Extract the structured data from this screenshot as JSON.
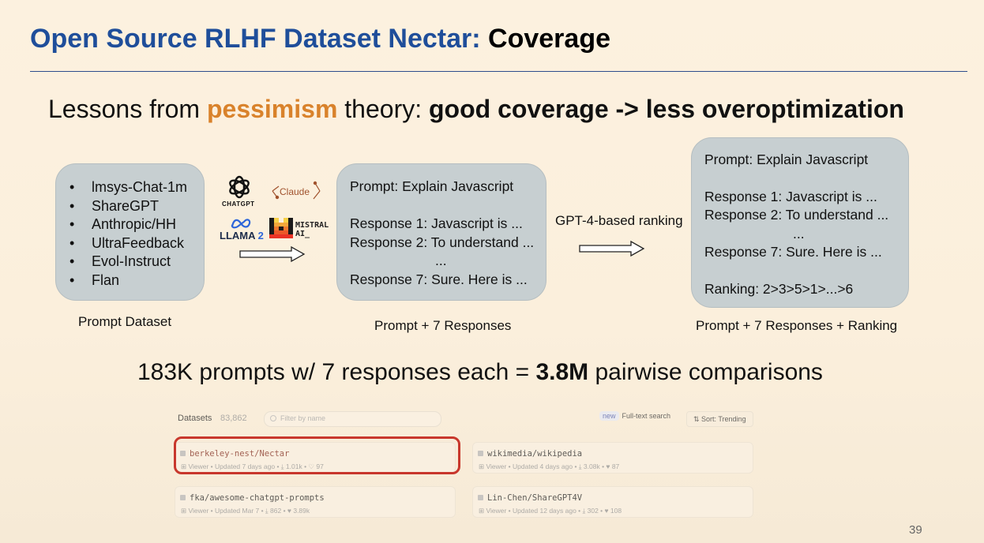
{
  "title": {
    "part1": "Open Source RLHF Dataset Nectar: ",
    "part2": "Coverage"
  },
  "subtitle": {
    "prefix": "Lessons from ",
    "highlight": "pessimism",
    "middle": " theory: ",
    "bold": "good coverage -> less overoptimization"
  },
  "prompt_dataset": {
    "items": [
      "lmsys-Chat-1m",
      "ShareGPT",
      "Anthropic/HH",
      "UltraFeedback",
      "Evol-Instruct",
      "Flan"
    ],
    "bullet": "•",
    "caption": "Prompt Dataset"
  },
  "models": {
    "chatgpt": "CHATGPT",
    "claude": "Claude",
    "llama": "LLAMA",
    "llama_version": "2",
    "mistral_line1": "MISTRAL",
    "mistral_line2": "AI_"
  },
  "responses_box": {
    "prompt": "Prompt: Explain Javascript",
    "response1": "Response 1: Javascript is ...",
    "response2": "Response 2: To understand ...",
    "dots": "...",
    "response7": "Response 7: Sure. Here is ...",
    "caption": "Prompt + 7 Responses"
  },
  "ranking_label": "GPT-4-based ranking",
  "ranking_box": {
    "prompt": "Prompt: Explain Javascript",
    "response1": "Response 1: Javascript is ...",
    "response2": "Response 2: To understand ...",
    "dots": "...",
    "response7": "Response 7: Sure. Here is ...",
    "ranking": "Ranking: 2>3>5>1>...>6",
    "caption": "Prompt + 7 Responses + Ranking"
  },
  "stats": {
    "prefix": "183K prompts w/ 7 responses each = ",
    "bold": "3.8M",
    "suffix": " pairwise comparisons"
  },
  "datasets_panel": {
    "label": "Datasets",
    "count": "83,862",
    "filter_placeholder": "Filter by name",
    "new_badge": "new",
    "fulltext_label": "Full-text search",
    "sort_label": "⇅ Sort:  Trending",
    "cards": [
      {
        "name": "berkeley-nest/Nectar",
        "meta": "⊞ Viewer  •  Updated 7 days ago  •  ⤓ 1.01k  •  ♡ 97"
      },
      {
        "name": "wikimedia/wikipedia",
        "meta": "⊞ Viewer  •  Updated 4 days ago  •  ⤓ 3.08k  •  ♥ 87"
      },
      {
        "name": "fka/awesome-chatgpt-prompts",
        "meta": "⊞ Viewer  •  Updated Mar 7  •  ⤓ 862  •  ♥ 3.89k"
      },
      {
        "name": "Lin-Chen/ShareGPT4V",
        "meta": "⊞ Viewer  •  Updated 12 days ago  •  ⤓ 302  •  ♥ 108"
      }
    ]
  },
  "page_number": "39",
  "colors": {
    "title_blue": "#1f4e9a",
    "highlight_orange": "#d9822b",
    "ring_red": "#c8372c",
    "box_gray": "#c7cfd1"
  }
}
